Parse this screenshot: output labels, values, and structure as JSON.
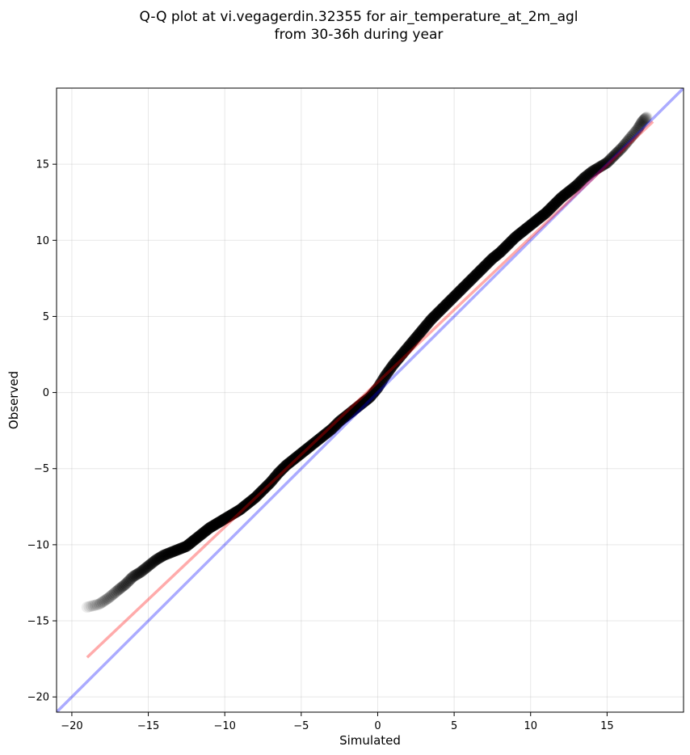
{
  "chart_data": {
    "type": "scatter",
    "title_line1": "Q-Q plot at vi.vegagerdin.32355 for air_temperature_at_2m_agl",
    "title_line2": "from 30-36h during year",
    "xlabel": "Simulated",
    "ylabel": "Observed",
    "xlim": [
      -21,
      20
    ],
    "ylim": [
      -21,
      20
    ],
    "xticks": [
      -20,
      -15,
      -10,
      -5,
      0,
      5,
      10,
      15
    ],
    "yticks": [
      -20,
      -15,
      -10,
      -5,
      0,
      5,
      10,
      15
    ],
    "grid": true,
    "colors": {
      "points": "#000000",
      "identity_line": "#0000ff",
      "fit_line": "#ff0000"
    },
    "identity_line": {
      "x": [
        -21,
        20
      ],
      "y": [
        -21,
        20
      ]
    },
    "fit_line": {
      "x": [
        -19,
        18
      ],
      "y": [
        -17.4,
        17.8
      ]
    },
    "quantiles": {
      "x": [
        -19.0,
        -18.2,
        -17.6,
        -17.0,
        -16.5,
        -16.0,
        -15.5,
        -15.0,
        -14.5,
        -14.0,
        -13.5,
        -13.0,
        -12.5,
        -12.0,
        -11.5,
        -11.0,
        -10.5,
        -10.0,
        -9.5,
        -9.0,
        -8.5,
        -8.0,
        -7.5,
        -7.0,
        -6.5,
        -6.0,
        -5.5,
        -5.0,
        -4.5,
        -4.0,
        -3.5,
        -3.0,
        -2.5,
        -2.0,
        -1.5,
        -1.0,
        -0.5,
        0.0,
        0.5,
        1.0,
        1.5,
        2.0,
        2.5,
        3.0,
        3.5,
        4.0,
        4.5,
        5.0,
        5.5,
        6.0,
        6.5,
        7.0,
        7.5,
        8.0,
        8.5,
        9.0,
        9.5,
        10.0,
        10.5,
        11.0,
        11.5,
        12.0,
        12.5,
        13.0,
        13.5,
        14.0,
        14.5,
        15.0,
        15.5,
        16.0,
        16.5,
        17.0,
        17.3,
        17.6
      ],
      "y": [
        -14.1,
        -13.9,
        -13.5,
        -13.0,
        -12.6,
        -12.1,
        -11.8,
        -11.4,
        -11.0,
        -10.7,
        -10.5,
        -10.3,
        -10.1,
        -9.7,
        -9.3,
        -8.9,
        -8.6,
        -8.3,
        -8.0,
        -7.7,
        -7.3,
        -6.9,
        -6.4,
        -5.9,
        -5.3,
        -4.8,
        -4.4,
        -4.0,
        -3.6,
        -3.2,
        -2.8,
        -2.4,
        -1.9,
        -1.5,
        -1.1,
        -0.7,
        -0.3,
        0.3,
        1.1,
        1.8,
        2.4,
        3.0,
        3.6,
        4.2,
        4.8,
        5.3,
        5.8,
        6.3,
        6.8,
        7.3,
        7.8,
        8.3,
        8.8,
        9.2,
        9.7,
        10.2,
        10.6,
        11.0,
        11.4,
        11.8,
        12.3,
        12.8,
        13.2,
        13.6,
        14.1,
        14.5,
        14.8,
        15.1,
        15.6,
        16.1,
        16.7,
        17.3,
        17.8,
        18.1
      ]
    }
  }
}
